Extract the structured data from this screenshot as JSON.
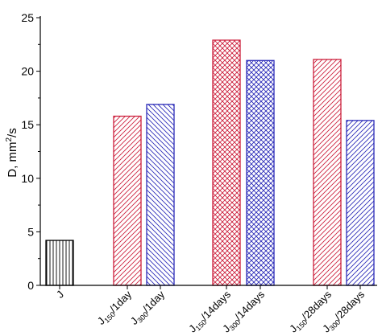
{
  "chart_data": {
    "type": "bar",
    "ylabel_main": "D, mm",
    "ylabel_sup": "2",
    "ylabel_tail": "/s",
    "ylim": [
      0,
      25
    ],
    "yticks": [
      "0",
      "5",
      "10",
      "15",
      "20",
      "25"
    ],
    "bars": [
      {
        "category_base": "J",
        "category_sub": "",
        "category_tail": "",
        "value": 4.2,
        "color": "#000000",
        "pattern": "vertical"
      },
      {
        "category_base": "J",
        "category_sub": "150",
        "category_tail": "/1day",
        "value": 15.8,
        "color": "#cc1f3c",
        "pattern": "diag-right"
      },
      {
        "category_base": "J",
        "category_sub": "300",
        "category_tail": "/1day",
        "value": 16.9,
        "color": "#2b2bb8",
        "pattern": "diag-left"
      },
      {
        "category_base": "J",
        "category_sub": "150",
        "category_tail": "/14days",
        "value": 22.9,
        "color": "#cc1f3c",
        "pattern": "cross"
      },
      {
        "category_base": "J",
        "category_sub": "300",
        "category_tail": "/14days",
        "value": 21.0,
        "color": "#2b2bb8",
        "pattern": "cross"
      },
      {
        "category_base": "J",
        "category_sub": "150",
        "category_tail": "/28days",
        "value": 21.1,
        "color": "#cc1f3c",
        "pattern": "diag-right"
      },
      {
        "category_base": "J",
        "category_sub": "300",
        "category_tail": "/28days",
        "value": 15.4,
        "color": "#2b2bb8",
        "pattern": "diag-right"
      }
    ]
  }
}
